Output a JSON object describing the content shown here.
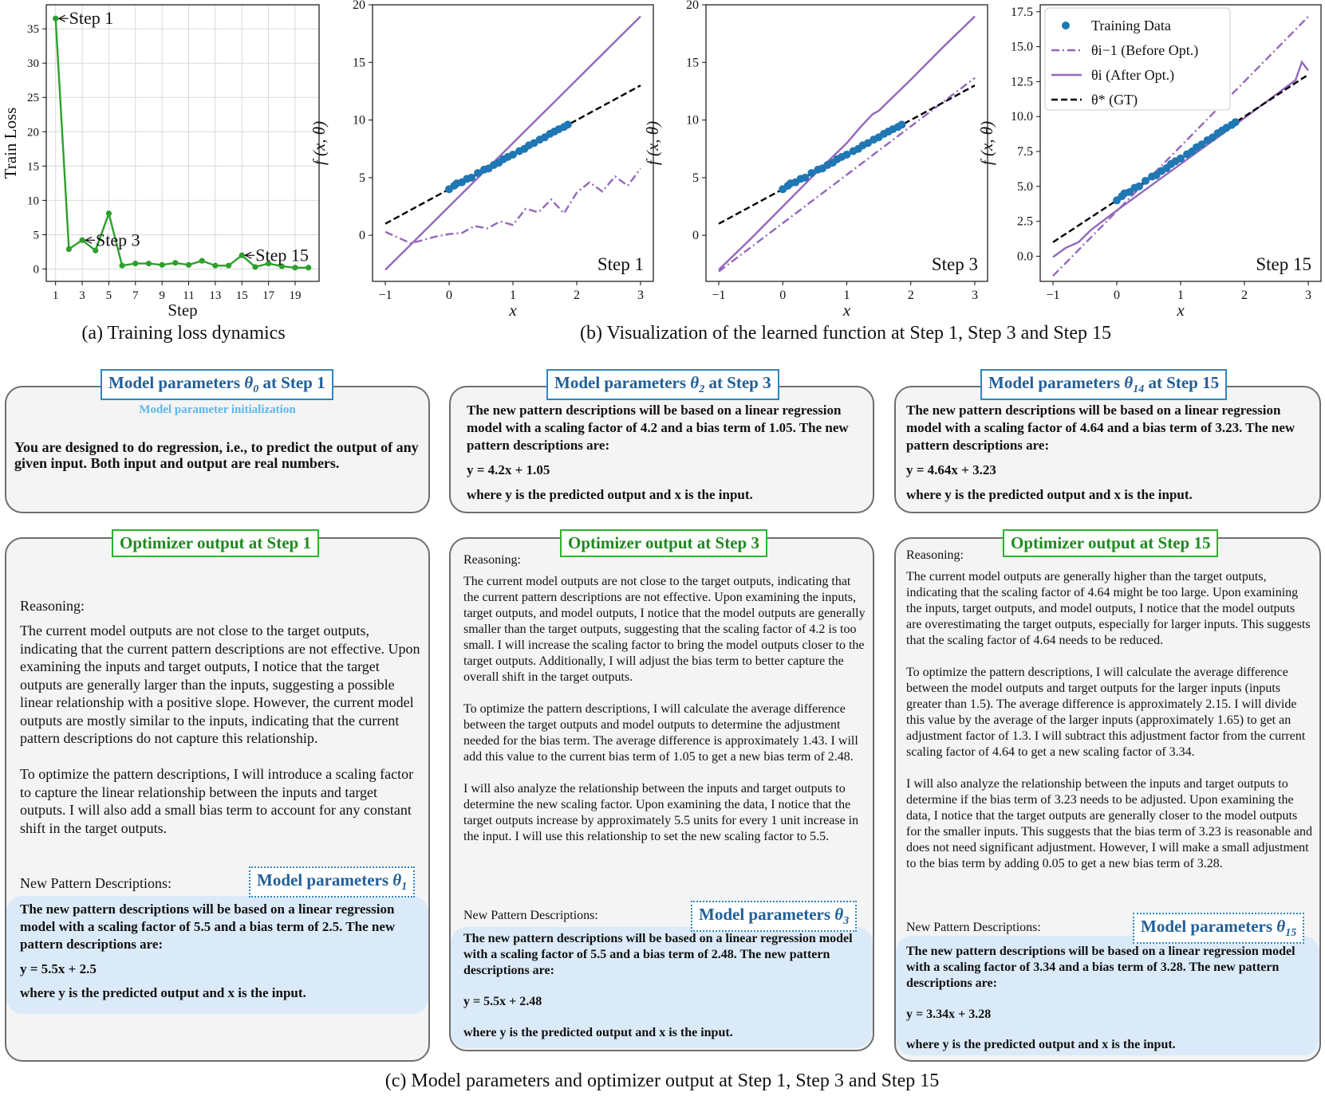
{
  "captions": {
    "a": "(a) Training loss dynamics",
    "b": "(b) Visualization of the learned function at Step 1, Step 3 and Step 15",
    "c": "(c) Model parameters and optimizer output at Step 1, Step 3 and Step 15"
  },
  "chart_data": [
    {
      "type": "line",
      "xlabel": "Step",
      "ylabel": "Train Loss",
      "xlim": [
        0.3,
        20.8
      ],
      "ylim": [
        -1.8,
        38.5
      ],
      "x_ticks": [
        "1",
        "3",
        "5",
        "7",
        "9",
        "11",
        "13",
        "15",
        "17",
        "19"
      ],
      "y_ticks": [
        "0",
        "5",
        "10",
        "15",
        "20",
        "25",
        "30",
        "35"
      ],
      "series": [
        {
          "color": "#2ca02c",
          "x": [
            1,
            2,
            3,
            4,
            5,
            6,
            7,
            8,
            9,
            10,
            11,
            12,
            13,
            14,
            15,
            16,
            17,
            18,
            19,
            20
          ],
          "y": [
            36.5,
            2.9,
            4.2,
            2.7,
            8.1,
            0.5,
            0.8,
            0.8,
            0.6,
            0.9,
            0.6,
            1.2,
            0.5,
            0.5,
            2.0,
            0.3,
            0.8,
            0.4,
            0.2,
            0.2
          ]
        }
      ],
      "annotations": [
        {
          "text": "Step 1",
          "x": 1,
          "y": 36.5
        },
        {
          "text": "Step 3",
          "x": 3,
          "y": 4.2
        },
        {
          "text": "Step 15",
          "x": 15,
          "y": 2.0
        }
      ],
      "grid": true
    },
    {
      "type": "line",
      "xlabel": "x",
      "ylabel": "f (x, θ)",
      "xlim": [
        -1.2,
        3.2
      ],
      "ylim": [
        -4,
        20
      ],
      "x_ticks": [
        "−1",
        "0",
        "1",
        "2",
        "3"
      ],
      "y_ticks": [
        "0",
        "5",
        "10",
        "15",
        "20"
      ],
      "step_label": "Step 1",
      "series": [
        {
          "role": "before",
          "style": "dashdot",
          "color": "#9467bd",
          "x": [
            -1,
            -0.8,
            -0.6,
            -0.4,
            -0.2,
            0,
            0.2,
            0.4,
            0.6,
            0.8,
            1.0,
            1.2,
            1.4,
            1.6,
            1.8,
            2.0,
            2.2,
            2.4,
            2.6,
            2.8,
            3.0
          ],
          "y": [
            0.3,
            -0.2,
            -0.7,
            -0.4,
            -0.1,
            0.1,
            0.2,
            0.8,
            0.6,
            1.2,
            0.9,
            2.3,
            2.0,
            3.1,
            1.9,
            3.7,
            4.6,
            3.8,
            5.1,
            4.3,
            5.8
          ]
        },
        {
          "role": "after",
          "style": "solid",
          "color": "#9467bd",
          "x": [
            -1,
            3
          ],
          "y": [
            -3.0,
            19.0
          ]
        },
        {
          "role": "gt",
          "style": "dashed",
          "color": "#000000",
          "x": [
            -1,
            3
          ],
          "y": [
            1.0,
            13.0
          ]
        }
      ]
    },
    {
      "type": "line",
      "xlabel": "x",
      "ylabel": "f (x, θ)",
      "xlim": [
        -1.2,
        3.2
      ],
      "ylim": [
        -4,
        20
      ],
      "x_ticks": [
        "−1",
        "0",
        "1",
        "2",
        "3"
      ],
      "y_ticks": [
        "0",
        "5",
        "10",
        "15",
        "20"
      ],
      "step_label": "Step 3",
      "series": [
        {
          "role": "before",
          "style": "dashdot",
          "color": "#9467bd",
          "x": [
            -1,
            3
          ],
          "y": [
            -3.15,
            13.65
          ]
        },
        {
          "role": "after",
          "style": "solid",
          "color": "#9467bd",
          "x": [
            -1,
            -0.5,
            0,
            0.5,
            1.0,
            1.2,
            1.4,
            1.5,
            2.0,
            2.5,
            3.0
          ],
          "y": [
            -3.0,
            -0.3,
            2.5,
            5.3,
            8.0,
            9.3,
            10.5,
            10.8,
            13.5,
            16.3,
            19.0
          ]
        },
        {
          "role": "gt",
          "style": "dashed",
          "color": "#000000",
          "x": [
            -1,
            3
          ],
          "y": [
            1.0,
            13.0
          ]
        }
      ]
    },
    {
      "type": "line",
      "xlabel": "x",
      "ylabel": "f (x, θ)",
      "xlim": [
        -1.2,
        3.2
      ],
      "ylim": [
        -1.8,
        18.0
      ],
      "x_ticks": [
        "−1",
        "0",
        "1",
        "2",
        "3"
      ],
      "y_ticks": [
        "0.0",
        "2.5",
        "5.0",
        "7.5",
        "10.0",
        "12.5",
        "15.0",
        "17.5"
      ],
      "step_label": "Step 15",
      "legend": {
        "placement": "top-left",
        "entries": [
          {
            "label": "Training Data",
            "role": "data"
          },
          {
            "label": "θi−1 (Before Opt.)",
            "role": "before"
          },
          {
            "label": "θi (After Opt.)",
            "role": "after"
          },
          {
            "label": "θ* (GT)",
            "role": "gt"
          }
        ]
      },
      "series": [
        {
          "role": "before",
          "style": "dashdot",
          "color": "#9467bd",
          "x": [
            -1,
            3
          ],
          "y": [
            -1.41,
            17.15
          ]
        },
        {
          "role": "after",
          "style": "solid",
          "color": "#9467bd",
          "x": [
            -1,
            -0.8,
            -0.6,
            -0.4,
            0,
            1,
            2,
            2.8,
            2.9,
            3.0
          ],
          "y": [
            -0.06,
            0.6,
            1.0,
            1.9,
            3.28,
            6.6,
            9.9,
            12.6,
            13.9,
            13.3
          ]
        },
        {
          "role": "gt",
          "style": "dashed",
          "color": "#000000",
          "x": [
            -1,
            3
          ],
          "y": [
            1.0,
            13.0
          ]
        }
      ]
    }
  ],
  "training_data": {
    "color": "#1f77b4",
    "x": [
      0.0,
      0.08,
      0.12,
      0.2,
      0.28,
      0.35,
      0.45,
      0.55,
      0.62,
      0.7,
      0.78,
      0.85,
      0.92,
      1.0,
      1.1,
      1.18,
      1.25,
      1.33,
      1.42,
      1.5,
      1.58,
      1.65,
      1.72,
      1.8,
      1.86
    ],
    "y": [
      4.0,
      4.3,
      4.5,
      4.6,
      4.9,
      5.0,
      5.4,
      5.7,
      5.8,
      6.1,
      6.3,
      6.6,
      6.8,
      7.0,
      7.3,
      7.5,
      7.8,
      8.0,
      8.3,
      8.5,
      8.8,
      9.0,
      9.2,
      9.4,
      9.6
    ]
  },
  "columns": [
    {
      "params_tag": {
        "prefix": "Model parameters ",
        "theta": "θ",
        "sub": "0",
        "suffix": " at Step 1"
      },
      "params_note": "Model parameter initialization",
      "params_text": "You are designed to do regression, i.e., to predict the output of any given input. Both input and output are real numbers.",
      "optimizer_tag": "Optimizer output at Step 1",
      "reasoning_label": "Reasoning:",
      "reasoning": "The current model outputs are not close to the target outputs, indicating that the current pattern descriptions are not effective. Upon examining the inputs and target outputs, I notice that the target outputs are generally larger than the inputs, suggesting a possible linear relationship with a positive slope. However, the current model outputs are mostly similar to the inputs, indicating that the current pattern descriptions do not capture this relationship.\n\nTo optimize the pattern descriptions, I will introduce a scaling factor to capture the linear relationship between the inputs and target outputs. I will also add a small bias term to account for any constant shift in the target outputs.",
      "new_label": "New Pattern Descriptions:",
      "new_tag": {
        "prefix": "Model parameters ",
        "theta": "θ",
        "sub": "1"
      },
      "new_p1": "The new pattern descriptions will be based on a linear regression model with a scaling factor of 5.5 and a bias term of 2.5. The new pattern descriptions are:",
      "new_eq": "y = 5.5x + 2.5",
      "new_p3": "where y is the predicted output and x is the input."
    },
    {
      "params_tag": {
        "prefix": "Model parameters ",
        "theta": "θ",
        "sub": "2",
        "suffix": " at Step 3"
      },
      "params_p1": "The new pattern descriptions will be based on a linear regression model with a scaling factor of 4.2 and a bias term of 1.05. The new pattern descriptions are:",
      "params_eq": "y = 4.2x + 1.05",
      "params_p3": "where y is the predicted output and x is the input.",
      "optimizer_tag": "Optimizer output at Step 3",
      "reasoning_label": "Reasoning:",
      "reasoning": "The current model outputs are not close to the target outputs, indicating that the current pattern descriptions are not effective. Upon examining the inputs, target outputs, and model outputs, I notice that the model outputs are generally smaller than the target outputs, suggesting that the scaling factor of 4.2 is too small. I will increase the scaling factor to bring the model outputs closer to the target outputs. Additionally, I will adjust the bias term to better capture the overall shift in the target outputs.\n\nTo optimize the pattern descriptions, I will calculate the average difference between the target outputs and model outputs to determine the adjustment needed for the bias term. The average difference is approximately 1.43. I will add this value to the current bias term of 1.05 to get a new bias term of 2.48.\n\nI will also analyze the relationship between the inputs and target outputs to determine the new scaling factor. Upon examining the data, I notice that the target outputs increase by approximately 5.5 units for every 1 unit increase in the input. I will use this relationship to set the new scaling factor to 5.5.",
      "new_label": "New Pattern Descriptions:",
      "new_tag": {
        "prefix": "Model parameters ",
        "theta": "θ",
        "sub": "3"
      },
      "new_p1": "The new pattern descriptions will be based on a linear regression model with a scaling factor of 5.5 and a bias term of 2.48. The new pattern descriptions are:",
      "new_eq": "y = 5.5x + 2.48",
      "new_p3": "where y is the predicted output and x is the input."
    },
    {
      "params_tag": {
        "prefix": "Model parameters ",
        "theta": "θ",
        "sub": "14",
        "suffix": " at Step 15"
      },
      "params_p1": "The new pattern descriptions will be based on a linear regression model with a scaling factor of 4.64 and a bias term of 3.23. The new pattern descriptions are:",
      "params_eq": "y = 4.64x + 3.23",
      "params_p3": "where y is the predicted output and x is the input.",
      "optimizer_tag": "Optimizer output at Step 15",
      "reasoning_label": "Reasoning:",
      "reasoning": "The current model outputs are generally higher than the target outputs, indicating that the scaling factor of 4.64 might be too large. Upon examining the inputs, target outputs, and model outputs, I notice that the model outputs are overestimating the target outputs, especially for larger inputs. This suggests that the scaling factor of 4.64 needs to be reduced.\n\nTo optimize the pattern descriptions, I will calculate the average difference between the model outputs and target outputs for the larger inputs (inputs greater than 1.5). The average difference is approximately 2.15. I will divide this value by the average of the larger inputs (approximately 1.65) to get an adjustment factor of 1.3. I will subtract this adjustment factor from the current scaling factor of 4.64 to get a new scaling factor of 3.34.\n\nI will also analyze the relationship between the inputs and target outputs to determine if the bias term of 3.23 needs to be adjusted. Upon examining the data, I notice that the target outputs are generally closer to the model outputs for the smaller inputs. This suggests that the bias term of 3.23 is reasonable and does not need significant adjustment. However, I will make a small adjustment to the bias term by adding 0.05 to get a new bias term of 3.28.",
      "new_label": "New Pattern Descriptions:",
      "new_tag": {
        "prefix": "Model parameters ",
        "theta": "θ",
        "sub": "15"
      },
      "new_p1": "The new pattern descriptions will be based on a linear regression model with a scaling factor of 3.34 and a bias term of 3.28. The new pattern descriptions are:",
      "new_eq": "y = 3.34x + 3.28",
      "new_p3": "where y is the predicted output and x is the input."
    }
  ]
}
